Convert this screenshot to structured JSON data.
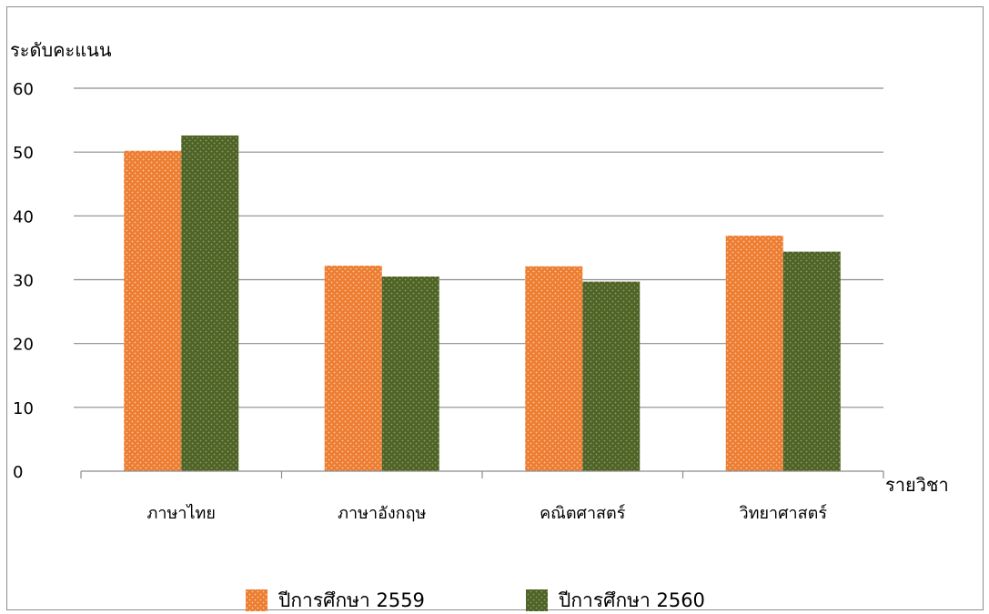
{
  "chart_data": {
    "type": "bar",
    "title": "",
    "ylabel": "ระดับคะแนน",
    "xlabel": "รายวิชา",
    "categories": [
      "ภาษาไทย",
      "ภาษาอังกฤษ",
      "คณิตศาสตร์",
      "วิทยาศาสตร์"
    ],
    "series": [
      {
        "name": "ปีการศึกษา 2559",
        "values": [
          50.2,
          32.2,
          32.1,
          36.9
        ],
        "color": "#ed7d31",
        "pattern": "dotted"
      },
      {
        "name": "ปีการศึกษา 2560",
        "values": [
          52.6,
          30.5,
          29.7,
          34.4
        ],
        "color": "#4f6228",
        "pattern": "dotted"
      }
    ],
    "ylim": [
      0,
      60
    ],
    "yticks": [
      0,
      10,
      20,
      30,
      40,
      50,
      60
    ],
    "grid": true,
    "legend_position": "bottom"
  }
}
